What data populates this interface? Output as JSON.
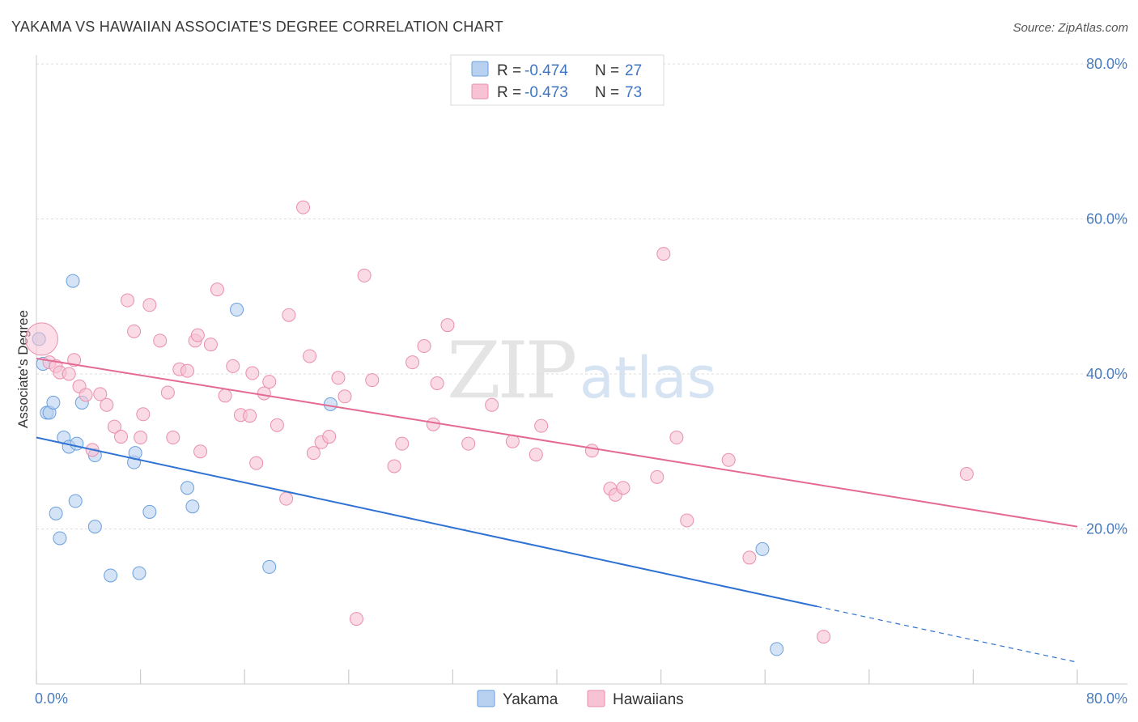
{
  "chart_data": {
    "type": "scatter",
    "title": "YAKAMA VS HAWAIIAN ASSOCIATE'S DEGREE CORRELATION CHART",
    "source": "Source: ZipAtlas.com",
    "ylabel": "Associate's Degree",
    "xlabel": "",
    "xlim": [
      0,
      80
    ],
    "ylim": [
      0,
      80
    ],
    "x_tick_labels": [
      "0.0%",
      "80.0%"
    ],
    "y_ticks": [
      20,
      40,
      60,
      80
    ],
    "y_tick_labels": [
      "20.0%",
      "40.0%",
      "60.0%",
      "80.0%"
    ],
    "grid": true,
    "watermark": {
      "zip": "ZIP",
      "atlas": "atlas"
    },
    "legend": {
      "position": "top-center",
      "entries": [
        {
          "r_label": "R =",
          "r_value": "-0.474",
          "n_label": "N =",
          "n_value": "27"
        },
        {
          "r_label": "R =",
          "r_value": "-0.473",
          "n_label": "N =",
          "n_value": "73"
        }
      ]
    },
    "series": [
      {
        "name": "Yakama",
        "color": "#6a9fdc",
        "fill": "#b8d1f0",
        "line_color": "#2f72d4",
        "trend": {
          "x0": 0,
          "y0": 31.8,
          "x1": 60,
          "y1": 10.0,
          "dashed_to_x": 80,
          "dashed_to_y": 2.8
        },
        "points": [
          [
            0.2,
            44.5
          ],
          [
            0.5,
            41.3
          ],
          [
            0.8,
            35.0
          ],
          [
            1.0,
            35.0
          ],
          [
            1.3,
            36.3
          ],
          [
            1.5,
            22.0
          ],
          [
            1.8,
            18.8
          ],
          [
            2.1,
            31.8
          ],
          [
            2.5,
            30.6
          ],
          [
            2.8,
            52.0
          ],
          [
            3.0,
            23.6
          ],
          [
            3.1,
            31.0
          ],
          [
            3.5,
            36.3
          ],
          [
            4.5,
            29.5
          ],
          [
            4.5,
            20.3
          ],
          [
            5.7,
            14.0
          ],
          [
            7.5,
            28.6
          ],
          [
            7.6,
            29.8
          ],
          [
            7.9,
            14.3
          ],
          [
            8.7,
            22.2
          ],
          [
            11.6,
            25.3
          ],
          [
            12.0,
            22.9
          ],
          [
            15.4,
            48.3
          ],
          [
            17.9,
            15.1
          ],
          [
            22.6,
            36.1
          ],
          [
            55.8,
            17.4
          ],
          [
            56.9,
            4.5
          ]
        ]
      },
      {
        "name": "Hawaiians",
        "color": "#e98fad",
        "fill": "#f7c2d3",
        "line_color": "#e46a93",
        "trend": {
          "x0": 0,
          "y0": 42.0,
          "x1": 80,
          "y1": 20.3
        },
        "points": [
          [
            0.4,
            44.5
          ],
          [
            1.0,
            41.5
          ],
          [
            1.5,
            41.0
          ],
          [
            1.8,
            40.2
          ],
          [
            2.5,
            40.0
          ],
          [
            2.9,
            41.8
          ],
          [
            3.3,
            38.4
          ],
          [
            3.8,
            37.3
          ],
          [
            4.3,
            30.2
          ],
          [
            4.9,
            37.4
          ],
          [
            5.4,
            36.0
          ],
          [
            6.0,
            33.2
          ],
          [
            6.5,
            31.9
          ],
          [
            7.0,
            49.5
          ],
          [
            7.5,
            45.5
          ],
          [
            8.0,
            31.8
          ],
          [
            8.2,
            34.8
          ],
          [
            8.7,
            48.9
          ],
          [
            9.5,
            44.3
          ],
          [
            10.1,
            37.6
          ],
          [
            10.5,
            31.8
          ],
          [
            11.0,
            40.6
          ],
          [
            11.6,
            40.4
          ],
          [
            12.2,
            44.3
          ],
          [
            12.4,
            45.0
          ],
          [
            12.6,
            30.0
          ],
          [
            13.4,
            43.8
          ],
          [
            13.9,
            50.9
          ],
          [
            14.5,
            37.2
          ],
          [
            15.1,
            41.0
          ],
          [
            15.7,
            34.7
          ],
          [
            16.4,
            34.6
          ],
          [
            16.6,
            40.1
          ],
          [
            16.9,
            28.5
          ],
          [
            17.5,
            37.5
          ],
          [
            17.9,
            39.0
          ],
          [
            18.5,
            33.4
          ],
          [
            19.2,
            23.9
          ],
          [
            19.4,
            47.6
          ],
          [
            20.5,
            61.5
          ],
          [
            21.0,
            42.3
          ],
          [
            21.3,
            29.8
          ],
          [
            21.9,
            31.2
          ],
          [
            22.5,
            31.9
          ],
          [
            23.2,
            39.5
          ],
          [
            23.7,
            37.1
          ],
          [
            24.6,
            8.4
          ],
          [
            25.2,
            52.7
          ],
          [
            25.8,
            39.2
          ],
          [
            27.5,
            28.1
          ],
          [
            28.1,
            31.0
          ],
          [
            28.9,
            41.5
          ],
          [
            29.8,
            43.6
          ],
          [
            30.5,
            33.5
          ],
          [
            30.8,
            38.8
          ],
          [
            31.6,
            46.3
          ],
          [
            33.2,
            31.0
          ],
          [
            35.0,
            36.0
          ],
          [
            36.6,
            31.3
          ],
          [
            38.4,
            29.6
          ],
          [
            38.8,
            33.3
          ],
          [
            42.7,
            30.1
          ],
          [
            44.1,
            25.2
          ],
          [
            44.5,
            24.4
          ],
          [
            45.1,
            25.3
          ],
          [
            47.7,
            26.7
          ],
          [
            48.2,
            55.5
          ],
          [
            49.2,
            31.8
          ],
          [
            50.0,
            21.1
          ],
          [
            53.2,
            28.9
          ],
          [
            54.8,
            16.3
          ],
          [
            60.5,
            6.1
          ],
          [
            71.5,
            27.1
          ]
        ]
      }
    ]
  },
  "bottom_legend": [
    {
      "label": "Yakama"
    },
    {
      "label": "Hawaiians"
    }
  ],
  "colors": {
    "axis": "#cccccc",
    "grid": "#dedede",
    "tick_text": "#4a7cc0"
  }
}
